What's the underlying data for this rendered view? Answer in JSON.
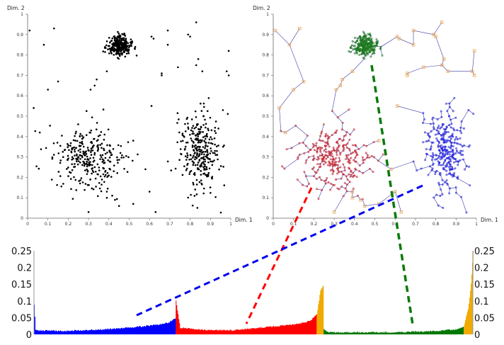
{
  "chart_data": [
    {
      "type": "scatter",
      "panel": "left",
      "xlabel": "Dim. 1",
      "ylabel": "Dim. 2",
      "xlim": [
        0,
        1
      ],
      "ylim": [
        0,
        1
      ],
      "xticks": [
        "0",
        "0.1",
        "0.2",
        "0.3",
        "0.4",
        "0.5",
        "0.6",
        "0.7",
        "0.8",
        "0.9",
        "1"
      ],
      "yticks": [
        "0",
        "0.1",
        "0.2",
        "0.3",
        "0.4",
        "0.5",
        "0.6",
        "0.7",
        "0.8",
        "0.9",
        "1"
      ],
      "point_color": "#000000",
      "clusters": [
        {
          "id": "green",
          "center": [
            0.45,
            0.845
          ],
          "spread": [
            0.03,
            0.025
          ],
          "count": 300
        },
        {
          "id": "red",
          "center": [
            0.3,
            0.29
          ],
          "spread": [
            0.085,
            0.08
          ],
          "count": 300
        },
        {
          "id": "blue",
          "center": [
            0.85,
            0.33
          ],
          "spread": [
            0.05,
            0.1
          ],
          "count": 300
        }
      ],
      "outliers": [
        [
          0.01,
          0.92
        ],
        [
          0.13,
          0.93
        ],
        [
          0.08,
          0.85
        ],
        [
          0.15,
          0.67
        ],
        [
          0.1,
          0.63
        ],
        [
          0.03,
          0.54
        ],
        [
          0.06,
          0.42
        ],
        [
          0.39,
          0.72
        ],
        [
          0.34,
          0.68
        ],
        [
          0.33,
          0.65
        ],
        [
          0.31,
          0.63
        ],
        [
          0.61,
          0.89
        ],
        [
          0.62,
          0.88
        ],
        [
          0.69,
          0.92
        ],
        [
          0.69,
          0.85
        ],
        [
          0.79,
          0.9
        ],
        [
          0.8,
          0.89
        ],
        [
          0.83,
          0.96
        ],
        [
          0.99,
          0.82
        ],
        [
          0.84,
          0.78
        ],
        [
          0.83,
          0.75
        ],
        [
          0.74,
          0.74
        ],
        [
          0.86,
          0.72
        ],
        [
          0.66,
          0.7
        ],
        [
          0.66,
          0.71
        ],
        [
          0.98,
          0.72
        ],
        [
          0.99,
          0.7
        ],
        [
          0.61,
          0.55
        ],
        [
          0.52,
          0.38
        ],
        [
          0.58,
          0.24
        ],
        [
          0.6,
          0.13
        ],
        [
          0.63,
          0.03
        ],
        [
          0.3,
          0.03
        ],
        [
          0.52,
          0.07
        ],
        [
          0.45,
          0.06
        ],
        [
          0.43,
          0.09
        ],
        [
          0.39,
          0.1
        ],
        [
          0.39,
          0.13
        ]
      ]
    },
    {
      "type": "scatter",
      "panel": "right",
      "subtype": "minimum spanning tree",
      "xlabel": "Dim. 1",
      "ylabel": "Dim. 2",
      "xlim": [
        0,
        1
      ],
      "ylim": [
        0,
        1
      ],
      "xticks": [
        "0",
        "0.1",
        "0.2",
        "0.3",
        "0.4",
        "0.5",
        "0.6",
        "0.7",
        "0.8",
        "0.9",
        "1"
      ],
      "yticks": [
        "0",
        "0.1",
        "0.2",
        "0.3",
        "0.4",
        "0.5",
        "0.6",
        "0.7",
        "0.8",
        "0.9",
        "1"
      ],
      "edge_color": "#3a3aa8",
      "cluster_colors": {
        "green": "#1e7a1e",
        "red": "#d42020",
        "blue": "#2020e0",
        "outlier": "#f0b060"
      }
    },
    {
      "type": "area",
      "panel": "bottom",
      "ylim": [
        0,
        0.25
      ],
      "yticks": [
        "0",
        "0.05",
        "0.1",
        "0.15",
        "0.2",
        "0.25"
      ],
      "y_axis_sides": [
        "left",
        "right"
      ],
      "segments": [
        {
          "id": "blue",
          "color": "#0000ff",
          "x": [
            0,
            0.323
          ],
          "profile": [
            [
              0,
              0.09
            ],
            [
              0.01,
              0.012
            ],
            [
              0.2,
              0.01
            ],
            [
              0.5,
              0.015
            ],
            [
              0.8,
              0.025
            ],
            [
              0.95,
              0.035
            ],
            [
              1,
              0.05
            ]
          ]
        },
        {
          "id": "red",
          "color": "#ff0000",
          "x": [
            0.323,
            0.644
          ],
          "profile": [
            [
              0,
              0.1
            ],
            [
              0.03,
              0.02
            ],
            [
              0.2,
              0.013
            ],
            [
              0.4,
              0.012
            ],
            [
              0.6,
              0.02
            ],
            [
              0.85,
              0.03
            ],
            [
              0.95,
              0.04
            ],
            [
              1,
              0.06
            ]
          ]
        },
        {
          "id": "orange-1",
          "color": "#f0aa00",
          "x": [
            0.644,
            0.66
          ],
          "profile": [
            [
              0,
              0.06
            ],
            [
              0.5,
              0.13
            ],
            [
              1,
              0.15
            ]
          ]
        },
        {
          "id": "green",
          "color": "#007700",
          "x": [
            0.66,
            0.979
          ],
          "profile": [
            [
              0,
              0.015
            ],
            [
              0.03,
              0.006
            ],
            [
              0.5,
              0.006
            ],
            [
              0.8,
              0.01
            ],
            [
              0.95,
              0.015
            ],
            [
              1,
              0.025
            ]
          ]
        },
        {
          "id": "orange-2",
          "color": "#f0aa00",
          "x": [
            0.979,
            1
          ],
          "profile": [
            [
              0,
              0.025
            ],
            [
              0.5,
              0.08
            ],
            [
              0.8,
              0.16
            ],
            [
              1,
              0.25
            ]
          ]
        }
      ]
    }
  ],
  "connectors": [
    {
      "id": "green",
      "color": "#0a7a0a"
    },
    {
      "id": "red",
      "color": "#ff0000"
    },
    {
      "id": "blue",
      "color": "#0000ee"
    }
  ]
}
